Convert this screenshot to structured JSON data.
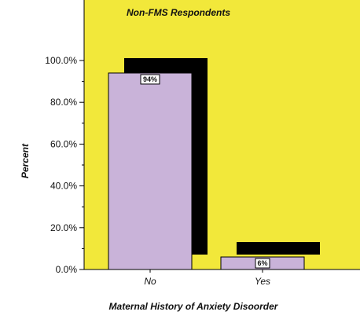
{
  "chart_data": {
    "type": "bar",
    "title": "Non-FMS Respondents",
    "xlabel": "Maternal History of Anxiety Disoorder",
    "ylabel": "Percent",
    "categories": [
      "No",
      "Yes"
    ],
    "values": [
      94,
      6
    ],
    "data_labels": [
      "94%",
      "6%"
    ],
    "ylim": [
      0,
      100
    ],
    "yticks": [
      0,
      20,
      40,
      60,
      80,
      100
    ],
    "ytick_labels": [
      "0.0%",
      "20.0%",
      "40.0%",
      "60.0%",
      "80.0%",
      "100.0%"
    ],
    "grid": false,
    "legend": "none",
    "style": "3d-shadow",
    "colors": {
      "plot_background": "#f2e83a",
      "bar_fill": "#c9b3d9",
      "bar_edge": "#000000",
      "bar_shadow": "#000000",
      "page_background": "#ffffff"
    }
  }
}
